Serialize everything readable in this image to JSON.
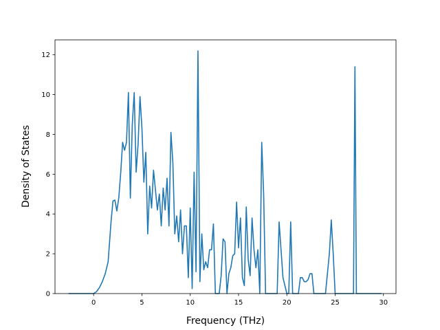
{
  "chart_data": {
    "type": "line",
    "title": "",
    "xlabel": "Frequency (THz)",
    "ylabel": "Density of States",
    "xlim": [
      -4.0,
      31.3
    ],
    "ylim": [
      0,
      12.75
    ],
    "xticks": [
      0,
      5,
      10,
      15,
      20,
      25,
      30
    ],
    "yticks": [
      0,
      2,
      4,
      6,
      8,
      10,
      12
    ],
    "grid": false,
    "legend": "none",
    "line_color": "#1f77b4",
    "series": [
      {
        "x": [
          -2.6,
          -1.5,
          -0.5,
          0.0,
          0.3,
          0.6,
          0.9,
          1.2,
          1.5,
          1.8,
          2.0,
          2.2,
          2.4,
          2.6,
          2.8,
          3.0,
          3.2,
          3.4,
          3.6,
          3.8,
          4.0,
          4.2,
          4.4,
          4.6,
          4.8,
          5.0,
          5.2,
          5.4,
          5.6,
          5.8,
          6.0,
          6.2,
          6.4,
          6.6,
          6.8,
          7.0,
          7.2,
          7.4,
          7.6,
          7.8,
          8.0,
          8.2,
          8.4,
          8.6,
          8.8,
          9.0,
          9.2,
          9.4,
          9.6,
          9.8,
          10.0,
          10.2,
          10.4,
          10.6,
          10.8,
          11.0,
          11.2,
          11.4,
          11.6,
          11.8,
          12.0,
          12.2,
          12.4,
          12.6,
          12.8,
          13.0,
          13.2,
          13.4,
          13.6,
          13.8,
          14.0,
          14.2,
          14.4,
          14.6,
          14.8,
          15.0,
          15.2,
          15.4,
          15.6,
          15.8,
          16.0,
          16.2,
          16.4,
          16.6,
          16.8,
          17.0,
          17.2,
          17.4,
          17.6,
          17.8,
          18.0,
          18.4,
          18.8,
          19.0,
          19.2,
          19.6,
          20.0,
          20.2,
          20.4,
          20.6,
          20.8,
          21.0,
          21.2,
          21.4,
          21.6,
          21.8,
          22.0,
          22.2,
          22.4,
          22.6,
          22.8,
          23.0,
          24.0,
          24.4,
          24.6,
          24.8,
          25.0,
          25.2,
          26.0,
          26.6,
          26.9,
          27.05,
          27.2,
          27.4,
          28.0,
          29.8
        ],
        "y": [
          0,
          0,
          0,
          0,
          0.1,
          0.3,
          0.6,
          1.0,
          1.6,
          3.6,
          4.65,
          4.7,
          4.15,
          4.8,
          6.05,
          7.6,
          7.2,
          7.6,
          10.1,
          4.8,
          8.5,
          10.1,
          6.1,
          7.5,
          9.9,
          8.3,
          5.6,
          7.1,
          3.0,
          5.4,
          4.3,
          6.2,
          5.2,
          4.2,
          5.0,
          3.4,
          5.3,
          4.2,
          5.8,
          3.4,
          8.1,
          6.6,
          3.0,
          3.9,
          2.6,
          4.2,
          2.0,
          3.4,
          3.4,
          0.8,
          4.3,
          0.25,
          6.1,
          1.1,
          12.2,
          0.6,
          3.0,
          1.2,
          1.6,
          1.3,
          2.2,
          2.2,
          3.5,
          0,
          0,
          0,
          0.9,
          2.75,
          2.6,
          0,
          1.0,
          1.3,
          1.9,
          2.0,
          4.6,
          2.3,
          3.8,
          0.8,
          0.4,
          4.35,
          1.7,
          0.9,
          3.8,
          2.2,
          1.3,
          2.2,
          0,
          7.6,
          5.0,
          0,
          0,
          0,
          0,
          0,
          3.6,
          0.8,
          0,
          0,
          3.6,
          0,
          0,
          0,
          0,
          0.8,
          0.8,
          0.6,
          0.6,
          0.7,
          1.0,
          1.0,
          0,
          0,
          0,
          2.0,
          3.7,
          2.0,
          0,
          0,
          0,
          0,
          0,
          11.4,
          0,
          0,
          0,
          0
        ]
      }
    ]
  }
}
